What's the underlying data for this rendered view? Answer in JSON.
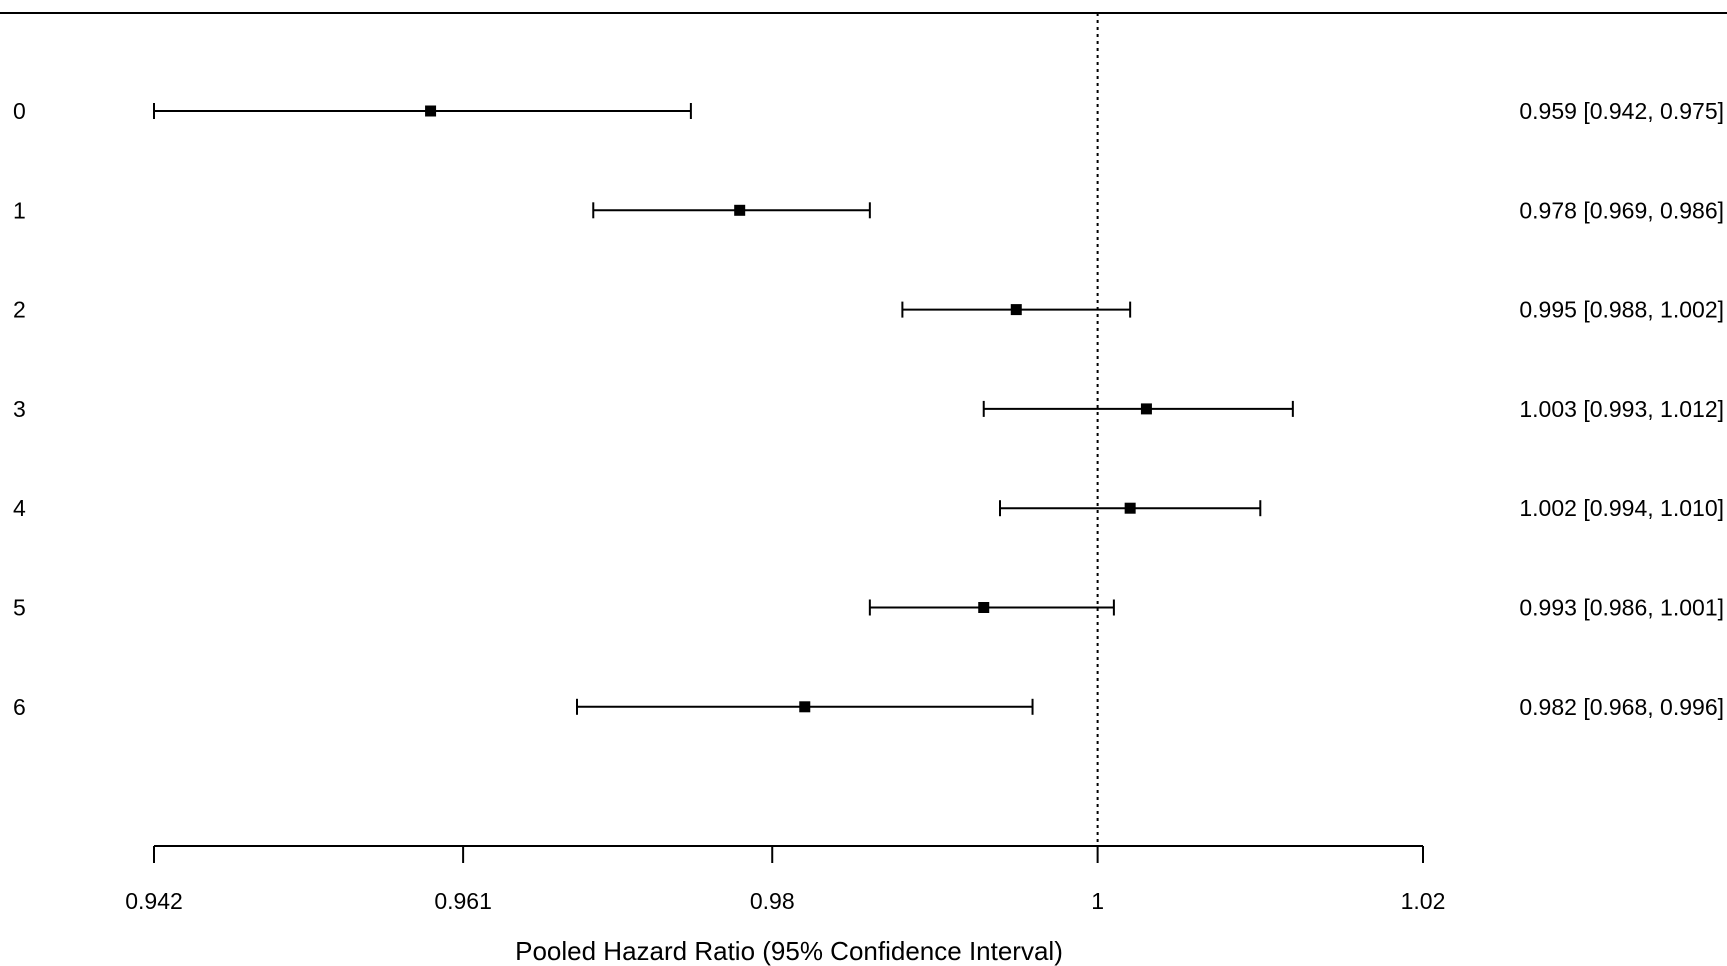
{
  "chart_data": {
    "type": "forest",
    "title": "",
    "xlabel": "Pooled Hazard Ratio (95% Confidence Interval)",
    "ylabel": "",
    "xlim": [
      0.942,
      1.02
    ],
    "x_ticks": [
      "0.942",
      "0.961",
      "0.98",
      "1",
      "1.02"
    ],
    "reference_line": 1,
    "grid": false,
    "rows": [
      {
        "label": "0",
        "estimate": 0.959,
        "lower": 0.942,
        "upper": 0.975,
        "text": "0.959 [0.942, 0.975]"
      },
      {
        "label": "1",
        "estimate": 0.978,
        "lower": 0.969,
        "upper": 0.986,
        "text": "0.978 [0.969, 0.986]"
      },
      {
        "label": "2",
        "estimate": 0.995,
        "lower": 0.988,
        "upper": 1.002,
        "text": "0.995 [0.988, 1.002]"
      },
      {
        "label": "3",
        "estimate": 1.003,
        "lower": 0.993,
        "upper": 1.012,
        "text": "1.003 [0.993, 1.012]"
      },
      {
        "label": "4",
        "estimate": 1.002,
        "lower": 0.994,
        "upper": 1.01,
        "text": "1.002 [0.994, 1.010]"
      },
      {
        "label": "5",
        "estimate": 0.993,
        "lower": 0.986,
        "upper": 1.001,
        "text": "0.993 [0.986, 1.001]"
      },
      {
        "label": "6",
        "estimate": 0.982,
        "lower": 0.968,
        "upper": 0.996,
        "text": "0.982 [0.968, 0.996]"
      }
    ]
  }
}
